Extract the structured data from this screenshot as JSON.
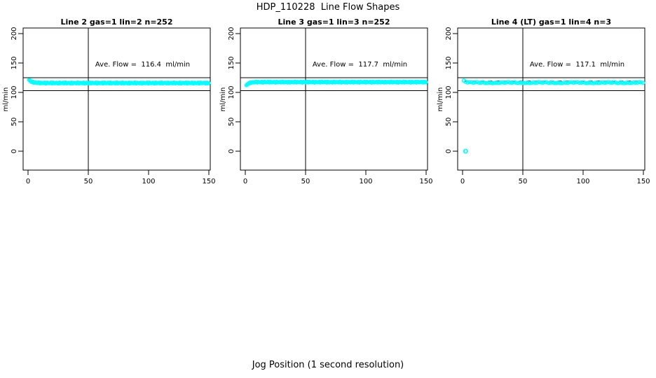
{
  "chart_data": {
    "type": "scatter",
    "figure_title": "HDP_110228  Line Flow Shapes",
    "xlabel": "Jog Position (1 second resolution)",
    "ylabel": "ml/min",
    "xlim": [
      0,
      150
    ],
    "ylim": [
      0,
      200
    ],
    "xticks": [
      0,
      50,
      100,
      150
    ],
    "yticks": [
      0,
      50,
      100,
      150,
      200
    ],
    "grid": false,
    "point_color": "#00FFFF",
    "line_color": "#000000",
    "ref_lines": {
      "vertical_x": 50,
      "horizontal_y": [
        125,
        103
      ]
    },
    "panels": [
      {
        "title": "Line 2 gas=1 lin=2 n=252",
        "line": 2,
        "gas": 1,
        "lin": 2,
        "n": 252,
        "ave_flow": 116.4,
        "annotation": "Ave. Flow =  116.4  ml/min",
        "band": {
          "x_from": 1,
          "x_to": 150,
          "step": 0.6,
          "y_start": 121,
          "y_settle": 116,
          "tau": 2.5,
          "jitter": 0.9
        },
        "outliers": []
      },
      {
        "title": "Line 3 gas=1 lin=3 n=252",
        "line": 3,
        "gas": 1,
        "lin": 3,
        "n": 252,
        "ave_flow": 117.7,
        "annotation": "Ave. Flow =  117.7  ml/min",
        "band": {
          "x_from": 1,
          "x_to": 150,
          "step": 0.6,
          "y_start": 112,
          "y_settle": 117.5,
          "tau": 2.0,
          "jitter": 0.9
        },
        "outliers": []
      },
      {
        "title": "Line 4 (LT) gas=1 lin=4 n=3",
        "line": 4,
        "lt": "(LT)",
        "gas": 1,
        "lin": 4,
        "n": 3,
        "ave_flow": 117.1,
        "annotation": "Ave. Flow =  117.1  ml/min",
        "band": {
          "x_from": 1,
          "x_to": 150,
          "step": 1.6,
          "y_start": 120,
          "y_settle": 116.5,
          "tau": 2.0,
          "jitter": 0.9
        },
        "dashed_line_y": 119,
        "outliers": [
          [
            2.5,
            0
          ]
        ]
      }
    ]
  }
}
